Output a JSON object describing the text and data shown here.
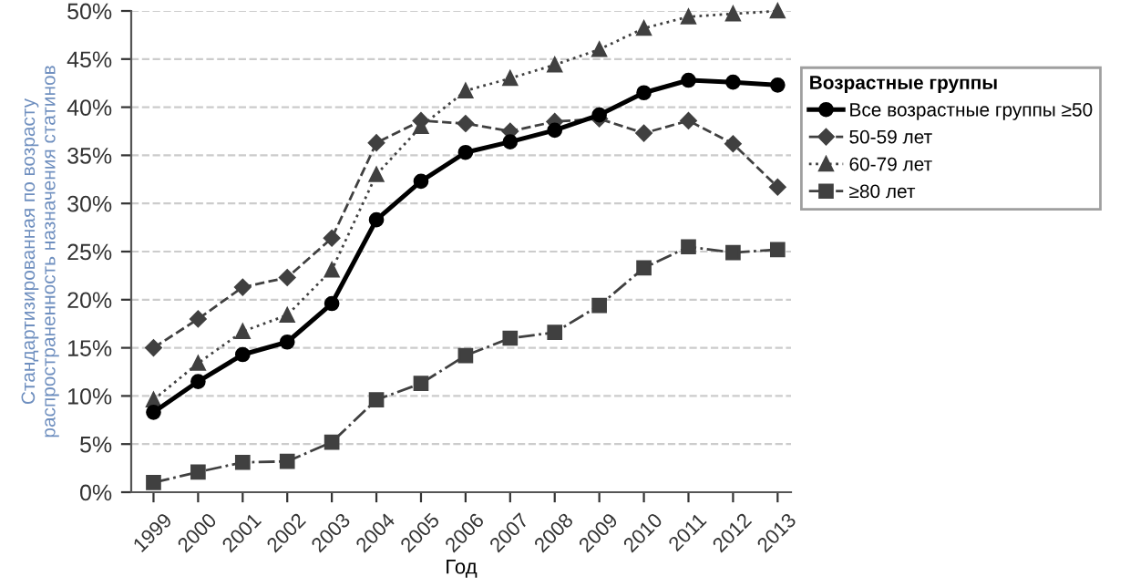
{
  "chart_data": {
    "type": "line",
    "xlabel": "Год",
    "ylabel": "Стандартизированная по возрасту\nраспространенность назначения статинов",
    "legend_title": "Возрастные группы",
    "legend": "right",
    "grid": "y",
    "categories": [
      "1999",
      "2000",
      "2001",
      "2002",
      "2003",
      "2004",
      "2005",
      "2006",
      "2007",
      "2008",
      "2009",
      "2010",
      "2011",
      "2012",
      "2013"
    ],
    "ylim": [
      0,
      50
    ],
    "yticks": [
      {
        "value": 0,
        "label": "0%"
      },
      {
        "value": 5,
        "label": "5%"
      },
      {
        "value": 10,
        "label": "10%"
      },
      {
        "value": 15,
        "label": "15%"
      },
      {
        "value": 20,
        "label": "20%"
      },
      {
        "value": 25,
        "label": "25%"
      },
      {
        "value": 30,
        "label": "30%"
      },
      {
        "value": 35,
        "label": "35%"
      },
      {
        "value": 40,
        "label": "40%"
      },
      {
        "value": 45,
        "label": "45%"
      },
      {
        "value": 50,
        "label": "50%"
      }
    ],
    "series": [
      {
        "name": "Все возрастные группы ≥50",
        "color": "#000000",
        "marker": "circle",
        "line_style": "solid",
        "values": [
          8.3,
          11.5,
          14.3,
          15.6,
          19.6,
          28.3,
          32.3,
          35.3,
          36.4,
          37.6,
          39.2,
          41.5,
          42.8,
          42.6,
          42.3
        ]
      },
      {
        "name": "50-59 лет",
        "color": "#404040",
        "marker": "diamond",
        "line_style": "dashed",
        "values": [
          15.0,
          18.0,
          21.3,
          22.3,
          26.4,
          36.3,
          38.6,
          38.3,
          37.5,
          38.5,
          38.8,
          37.3,
          38.6,
          36.2,
          31.7
        ]
      },
      {
        "name": "60-79 лет",
        "color": "#404040",
        "marker": "triangle",
        "line_style": "dotted",
        "values": [
          9.6,
          13.4,
          16.7,
          18.4,
          23.1,
          33.0,
          38.0,
          41.7,
          43.0,
          44.4,
          46.0,
          48.2,
          49.4,
          49.7,
          50.0
        ]
      },
      {
        "name": "≥80 лет",
        "color": "#404040",
        "marker": "square",
        "line_style": "dashdot",
        "values": [
          1.0,
          2.1,
          3.1,
          3.2,
          5.2,
          9.6,
          11.3,
          14.2,
          16.0,
          16.6,
          19.4,
          23.3,
          25.5,
          24.9,
          25.2
        ]
      }
    ]
  }
}
